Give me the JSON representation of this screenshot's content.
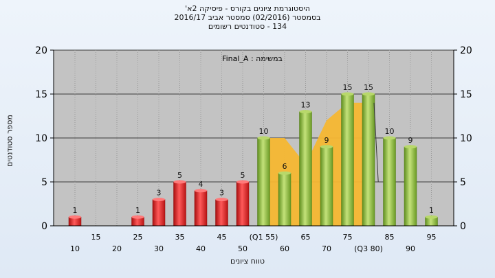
{
  "header": {
    "line1": "היסטוגרמת ציונים בקורס - פיסיקה 2א'",
    "line2": "בסמסטר (02/2016) סמסטר אביב 2016/17",
    "line3": "134 - סטודנטים רשומים"
  },
  "chart_data": {
    "type": "bar",
    "annotation": "במשימה : Final_A",
    "ylabel": "מספר סטודנטים",
    "xlabel": "טווח ציונים",
    "ylim": [
      0,
      20
    ],
    "yticks": [
      0,
      5,
      10,
      15,
      20
    ],
    "grid": true,
    "xtick_labels_row1": [
      "15",
      "25",
      "35",
      "45",
      "(Q1 55)",
      "65",
      "75",
      "85",
      "95"
    ],
    "xtick_labels_row2": [
      "10",
      "20",
      "30",
      "40",
      "50",
      "60",
      "70",
      "(Q3 80)",
      "90"
    ],
    "categories": [
      "10",
      "15",
      "20",
      "25",
      "30",
      "35",
      "40",
      "45",
      "50",
      "55",
      "60",
      "65",
      "70",
      "75",
      "80",
      "85",
      "90",
      "95"
    ],
    "values": [
      1,
      0,
      0,
      1,
      3,
      5,
      4,
      3,
      5,
      10,
      6,
      13,
      9,
      15,
      15,
      10,
      9,
      1
    ],
    "bar_colors_by_range": {
      "below_55": "#e02b2b",
      "from_55": "#8fbf3c"
    },
    "area_color": "#f5b731",
    "quartile_area": {
      "x": [
        55,
        60,
        65,
        70,
        75,
        80
      ],
      "values": [
        10,
        10,
        7,
        12,
        14,
        14
      ]
    },
    "colors": {
      "plot_background": "#c3c3c3",
      "red_bar": "#e02b2b",
      "green_bar": "#8fbf3c",
      "area": "#f5b731"
    }
  }
}
